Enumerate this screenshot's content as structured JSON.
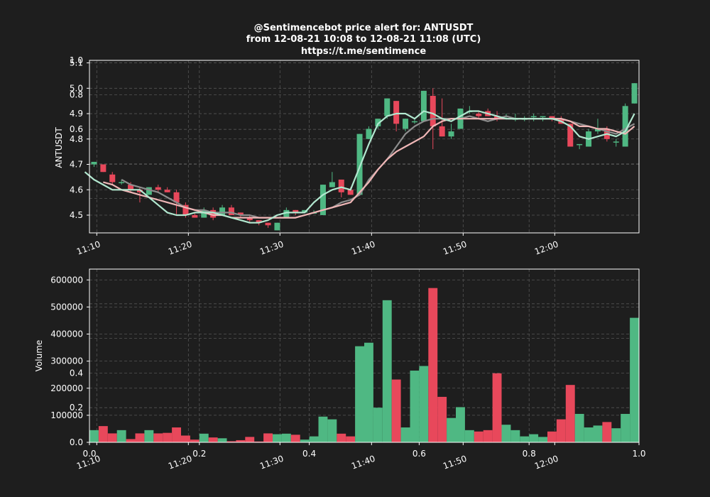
{
  "chart_data": {
    "type": "candlestick",
    "title_lines": [
      "@Sentimencebot price alert for: ANTUSDT",
      "from 12-08-21 10:08 to 12-08-21 11:08 (UTC)",
      "https://t.me/sentimence"
    ],
    "time_labels": [
      "11:10",
      "11:20",
      "11:30",
      "11:40",
      "11:50",
      "12:00"
    ],
    "price_panel": {
      "ylabel": "ANTUSDT",
      "ylim": [
        4.43,
        5.11
      ],
      "yticks": [
        "4.5",
        "4.6",
        "4.7",
        "4.8",
        "4.9",
        "5.0",
        "5.1"
      ],
      "overlay_ticks": [
        "0.0",
        "0.2",
        "0.4",
        "0.6",
        "0.8",
        "1.0"
      ]
    },
    "volume_panel": {
      "ylabel": "Volume",
      "ylim": [
        0,
        640000
      ],
      "yticks": [
        "0.0",
        "100000",
        "200000",
        "300000",
        "400000",
        "500000",
        "600000"
      ],
      "overlay_ticks": [
        "0.0",
        "0.2",
        "0.4",
        "0.6",
        "0.8",
        "1.0"
      ],
      "bottom_ticks": [
        "0.0",
        "0.2",
        "0.4",
        "0.6",
        "0.8",
        "1.0"
      ]
    },
    "colors": {
      "up": "#4fb883",
      "down": "#e8485b",
      "ma_fast": "#b2e8d0",
      "ma_mid": "#8d8d8d",
      "ma_slow": "#f0b7b7"
    },
    "candles": [
      {
        "o": 4.7,
        "h": 4.71,
        "l": 4.69,
        "c": 4.71,
        "v": 45000
      },
      {
        "o": 4.7,
        "h": 4.7,
        "l": 4.67,
        "c": 4.67,
        "v": 60000
      },
      {
        "o": 4.66,
        "h": 4.67,
        "l": 4.62,
        "c": 4.63,
        "v": 33000
      },
      {
        "o": 4.63,
        "h": 4.64,
        "l": 4.62,
        "c": 4.63,
        "v": 45000
      },
      {
        "o": 4.62,
        "h": 4.63,
        "l": 4.59,
        "c": 4.6,
        "v": 12000
      },
      {
        "o": 4.6,
        "h": 4.61,
        "l": 4.55,
        "c": 4.59,
        "v": 33000
      },
      {
        "o": 4.58,
        "h": 4.61,
        "l": 4.58,
        "c": 4.61,
        "v": 45000
      },
      {
        "o": 4.61,
        "h": 4.62,
        "l": 4.59,
        "c": 4.6,
        "v": 33000
      },
      {
        "o": 4.6,
        "h": 4.61,
        "l": 4.59,
        "c": 4.59,
        "v": 35000
      },
      {
        "o": 4.59,
        "h": 4.6,
        "l": 4.5,
        "c": 4.55,
        "v": 55000
      },
      {
        "o": 4.54,
        "h": 4.55,
        "l": 4.49,
        "c": 4.5,
        "v": 25000
      },
      {
        "o": 4.5,
        "h": 4.51,
        "l": 4.49,
        "c": 4.49,
        "v": 10000
      },
      {
        "o": 4.49,
        "h": 4.53,
        "l": 4.49,
        "c": 4.52,
        "v": 32000
      },
      {
        "o": 4.52,
        "h": 4.53,
        "l": 4.48,
        "c": 4.49,
        "v": 18000
      },
      {
        "o": 4.5,
        "h": 4.54,
        "l": 4.5,
        "c": 4.53,
        "v": 15000
      },
      {
        "o": 4.53,
        "h": 4.54,
        "l": 4.5,
        "c": 4.5,
        "v": 4000
      },
      {
        "o": 4.51,
        "h": 4.51,
        "l": 4.49,
        "c": 4.5,
        "v": 8000
      },
      {
        "o": 4.49,
        "h": 4.5,
        "l": 4.47,
        "c": 4.48,
        "v": 20000
      },
      {
        "o": 4.48,
        "h": 4.48,
        "l": 4.46,
        "c": 4.47,
        "v": 3000
      },
      {
        "o": 4.47,
        "h": 4.47,
        "l": 4.45,
        "c": 4.46,
        "v": 33000
      },
      {
        "o": 4.44,
        "h": 4.47,
        "l": 4.44,
        "c": 4.47,
        "v": 30000
      },
      {
        "o": 4.49,
        "h": 4.53,
        "l": 4.49,
        "c": 4.52,
        "v": 32000
      },
      {
        "o": 4.52,
        "h": 4.52,
        "l": 4.5,
        "c": 4.51,
        "v": 28000
      },
      {
        "o": 4.51,
        "h": 4.52,
        "l": 4.51,
        "c": 4.52,
        "v": 10000
      },
      {
        "o": 4.51,
        "h": 4.52,
        "l": 4.51,
        "c": 4.51,
        "v": 22000
      },
      {
        "o": 4.5,
        "h": 4.62,
        "l": 4.5,
        "c": 4.62,
        "v": 95000
      },
      {
        "o": 4.61,
        "h": 4.67,
        "l": 4.61,
        "c": 4.63,
        "v": 85000
      },
      {
        "o": 4.64,
        "h": 4.64,
        "l": 4.57,
        "c": 4.59,
        "v": 32000
      },
      {
        "o": 4.6,
        "h": 4.61,
        "l": 4.58,
        "c": 4.58,
        "v": 22000
      },
      {
        "o": 4.58,
        "h": 4.82,
        "l": 4.58,
        "c": 4.82,
        "v": 355000
      },
      {
        "o": 4.8,
        "h": 4.85,
        "l": 4.8,
        "c": 4.84,
        "v": 368000
      },
      {
        "o": 4.85,
        "h": 4.88,
        "l": 4.84,
        "c": 4.88,
        "v": 128000
      },
      {
        "o": 4.89,
        "h": 4.96,
        "l": 4.88,
        "c": 4.96,
        "v": 525000
      },
      {
        "o": 4.95,
        "h": 4.95,
        "l": 4.83,
        "c": 4.86,
        "v": 232000
      },
      {
        "o": 4.84,
        "h": 4.88,
        "l": 4.83,
        "c": 4.88,
        "v": 55000
      },
      {
        "o": 4.87,
        "h": 4.88,
        "l": 4.86,
        "c": 4.87,
        "v": 265000
      },
      {
        "o": 4.87,
        "h": 4.99,
        "l": 4.87,
        "c": 4.99,
        "v": 282000
      },
      {
        "o": 4.97,
        "h": 5.0,
        "l": 4.76,
        "c": 4.85,
        "v": 570000
      },
      {
        "o": 4.85,
        "h": 4.96,
        "l": 4.81,
        "c": 4.81,
        "v": 168000
      },
      {
        "o": 4.81,
        "h": 4.86,
        "l": 4.8,
        "c": 4.83,
        "v": 90000
      },
      {
        "o": 4.84,
        "h": 4.92,
        "l": 4.84,
        "c": 4.92,
        "v": 130000
      },
      {
        "o": 4.91,
        "h": 4.93,
        "l": 4.9,
        "c": 4.91,
        "v": 45000
      },
      {
        "o": 4.9,
        "h": 4.91,
        "l": 4.88,
        "c": 4.89,
        "v": 40000
      },
      {
        "o": 4.91,
        "h": 4.92,
        "l": 4.89,
        "c": 4.89,
        "v": 45000
      },
      {
        "o": 4.89,
        "h": 4.91,
        "l": 4.87,
        "c": 4.88,
        "v": 255000
      },
      {
        "o": 4.89,
        "h": 4.9,
        "l": 4.88,
        "c": 4.89,
        "v": 65000
      },
      {
        "o": 4.88,
        "h": 4.9,
        "l": 4.87,
        "c": 4.88,
        "v": 45000
      },
      {
        "o": 4.88,
        "h": 4.89,
        "l": 4.87,
        "c": 4.88,
        "v": 22000
      },
      {
        "o": 4.89,
        "h": 4.9,
        "l": 4.87,
        "c": 4.89,
        "v": 30000
      },
      {
        "o": 4.89,
        "h": 4.89,
        "l": 4.87,
        "c": 4.89,
        "v": 20000
      },
      {
        "o": 4.89,
        "h": 4.89,
        "l": 4.87,
        "c": 4.88,
        "v": 40000
      },
      {
        "o": 4.88,
        "h": 4.89,
        "l": 4.86,
        "c": 4.86,
        "v": 85000
      },
      {
        "o": 4.86,
        "h": 4.86,
        "l": 4.77,
        "c": 4.77,
        "v": 212000
      },
      {
        "o": 4.78,
        "h": 4.78,
        "l": 4.76,
        "c": 4.78,
        "v": 105000
      },
      {
        "o": 4.77,
        "h": 4.84,
        "l": 4.77,
        "c": 4.83,
        "v": 55000
      },
      {
        "o": 4.83,
        "h": 4.88,
        "l": 4.82,
        "c": 4.84,
        "v": 62000
      },
      {
        "o": 4.84,
        "h": 4.85,
        "l": 4.79,
        "c": 4.8,
        "v": 75000
      },
      {
        "o": 4.79,
        "h": 4.8,
        "l": 4.77,
        "c": 4.79,
        "v": 52000
      },
      {
        "o": 4.77,
        "h": 4.94,
        "l": 4.77,
        "c": 4.93,
        "v": 105000
      },
      {
        "o": 4.94,
        "h": 5.02,
        "l": 4.94,
        "c": 5.02,
        "v": 460000
      }
    ],
    "ma_fast": [
      4.67,
      4.64,
      4.62,
      4.6,
      4.6,
      4.6,
      4.6,
      4.57,
      4.54,
      4.51,
      4.5,
      4.5,
      4.51,
      4.51,
      4.51,
      4.5,
      4.49,
      4.48,
      4.47,
      4.47,
      4.48,
      4.5,
      4.51,
      4.51,
      4.51,
      4.55,
      4.58,
      4.6,
      4.61,
      4.6,
      4.69,
      4.78,
      4.86,
      4.89,
      4.9,
      4.9,
      4.88,
      4.91,
      4.9,
      4.88,
      4.87,
      4.89,
      4.91,
      4.91,
      4.9,
      4.89,
      4.88,
      4.88,
      4.88,
      4.88,
      4.88,
      4.88,
      4.87,
      4.85,
      4.81,
      4.8,
      4.81,
      4.82,
      4.81,
      4.83,
      4.9
    ],
    "ma_mid": [
      4.64,
      4.62,
      4.61,
      4.6,
      4.59,
      4.57,
      4.55,
      4.53,
      4.52,
      4.52,
      4.51,
      4.51,
      4.51,
      4.5,
      4.5,
      4.49,
      4.49,
      4.49,
      4.49,
      4.49,
      4.5,
      4.51,
      4.52,
      4.53,
      4.55,
      4.56,
      4.58,
      4.64,
      4.68,
      4.72,
      4.77,
      4.82,
      4.85,
      4.87,
      4.88,
      4.88,
      4.88,
      4.88,
      4.89,
      4.88,
      4.87,
      4.88,
      4.89,
      4.88,
      4.88,
      4.88,
      4.88,
      4.88,
      4.88,
      4.87,
      4.86,
      4.85,
      4.84,
      4.83,
      4.82,
      4.84,
      4.86
    ],
    "ma_slow": [
      4.63,
      4.62,
      4.6,
      4.59,
      4.58,
      4.57,
      4.56,
      4.55,
      4.54,
      4.53,
      4.52,
      4.51,
      4.5,
      4.5,
      4.49,
      4.49,
      4.49,
      4.49,
      4.49,
      4.49,
      4.49,
      4.49,
      4.5,
      4.51,
      4.52,
      4.53,
      4.54,
      4.55,
      4.59,
      4.63,
      4.68,
      4.72,
      4.75,
      4.77,
      4.79,
      4.81,
      4.85,
      4.87,
      4.88,
      4.88,
      4.88,
      4.88,
      4.88,
      4.88,
      4.88,
      4.88,
      4.88,
      4.88,
      4.88,
      4.88,
      4.88,
      4.87,
      4.85,
      4.85,
      4.84,
      4.84,
      4.83,
      4.82,
      4.85
    ]
  }
}
